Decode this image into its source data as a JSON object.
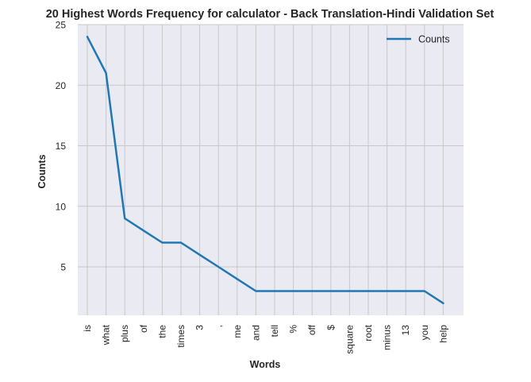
{
  "chart_data": {
    "type": "line",
    "title": "20 Highest Words Frequency for calculator - Back Translation-Hindi Validation Set",
    "xlabel": "Words",
    "ylabel": "Counts",
    "categories": [
      "is",
      "what",
      "plus",
      "of",
      "the",
      "times",
      "3",
      ",",
      "me",
      "and",
      "tell",
      "%",
      "off",
      "$",
      "square",
      "root",
      "minus",
      "13",
      "you",
      "help"
    ],
    "series": [
      {
        "name": "Counts",
        "values": [
          24,
          21,
          9,
          8,
          7,
          7,
          6,
          5,
          4,
          3,
          3,
          3,
          3,
          3,
          3,
          3,
          3,
          3,
          3,
          2
        ]
      }
    ],
    "ylim": [
      1,
      25
    ],
    "yticks": [
      5,
      10,
      15,
      20,
      25
    ],
    "grid": true,
    "legend": "top-right",
    "colors": {
      "line": "#1f77b4",
      "plot_bg": "#eaeaf2",
      "grid": "#c8c8c8"
    }
  }
}
